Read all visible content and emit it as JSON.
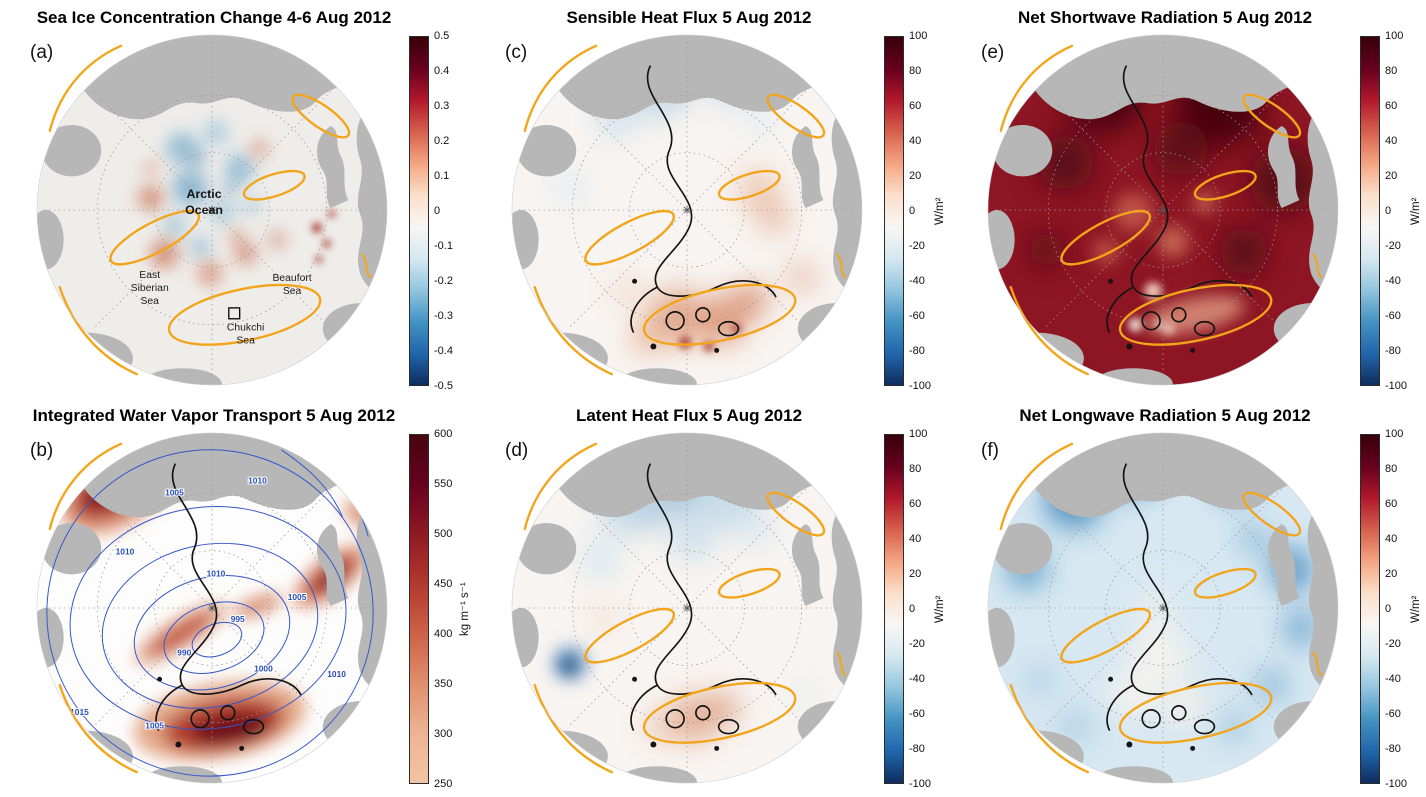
{
  "figure": {
    "colorscales": {
      "rdbu_diverging": [
        "#38000a",
        "#67001f",
        "#b2182b",
        "#d6604d",
        "#f4a582",
        "#fbdfcb",
        "#f8f6f4",
        "#d6e8f1",
        "#92c5de",
        "#4393c3",
        "#2166ac",
        "#0d2d5e"
      ],
      "ivt_reds": [
        "#45060f",
        "#67001f",
        "#8f1a24",
        "#b2392e",
        "#cc6248",
        "#e08f6d",
        "#edb494",
        "#f2c4a4"
      ]
    },
    "panels": [
      {
        "label": "(a)",
        "title": "Sea Ice Concentration Change 4-6 Aug 2012",
        "colorbar": {
          "ticks": [
            "0.5",
            "0.4",
            "0.3",
            "0.2",
            "0.1",
            "0",
            "-0.1",
            "-0.2",
            "-0.3",
            "-0.4",
            "-0.5"
          ],
          "unit": ""
        },
        "annotations": {
          "arctic_ocean": [
            "Arctic",
            "Ocean"
          ],
          "east_siberian_sea": [
            "East",
            "Siberian",
            "Sea"
          ],
          "beaufort_sea": [
            "Beaufort",
            "Sea"
          ],
          "chukchi_sea": [
            "Chukchi",
            "Sea"
          ]
        }
      },
      {
        "label": "(b)",
        "title": "Integrated Water Vapor Transport 5 Aug 2012",
        "colorbar": {
          "ticks": [
            "600",
            "550",
            "500",
            "450",
            "400",
            "350",
            "300",
            "250"
          ],
          "unit": "kg m⁻¹ s⁻¹"
        },
        "isobar_labels": [
          "1010",
          "1005",
          "1010",
          "1005",
          "1010",
          "1000",
          "995",
          "990",
          "1015",
          "1005",
          "1010"
        ]
      },
      {
        "label": "(c)",
        "title": "Sensible Heat Flux 5 Aug 2012",
        "colorbar": {
          "ticks": [
            "100",
            "80",
            "60",
            "40",
            "20",
            "0",
            "-20",
            "-40",
            "-60",
            "-80",
            "-100"
          ],
          "unit": "W/m²"
        }
      },
      {
        "label": "(d)",
        "title": "Latent Heat Flux 5 Aug 2012",
        "colorbar": {
          "ticks": [
            "100",
            "80",
            "60",
            "40",
            "20",
            "0",
            "-20",
            "-40",
            "-60",
            "-80",
            "-100"
          ],
          "unit": "W/m²"
        }
      },
      {
        "label": "(e)",
        "title": "Net Shortwave Radiation 5 Aug 2012",
        "colorbar": {
          "ticks": [
            "100",
            "80",
            "60",
            "40",
            "20",
            "0",
            "-20",
            "-40",
            "-60",
            "-80",
            "-100"
          ],
          "unit": "W/m²"
        }
      },
      {
        "label": "(f)",
        "title": "Net Longwave Radiation 5 Aug 2012",
        "colorbar": {
          "ticks": [
            "100",
            "80",
            "60",
            "40",
            "20",
            "0",
            "-20",
            "-40",
            "-60",
            "-80",
            "-100"
          ],
          "unit": "W/m²"
        }
      }
    ]
  }
}
